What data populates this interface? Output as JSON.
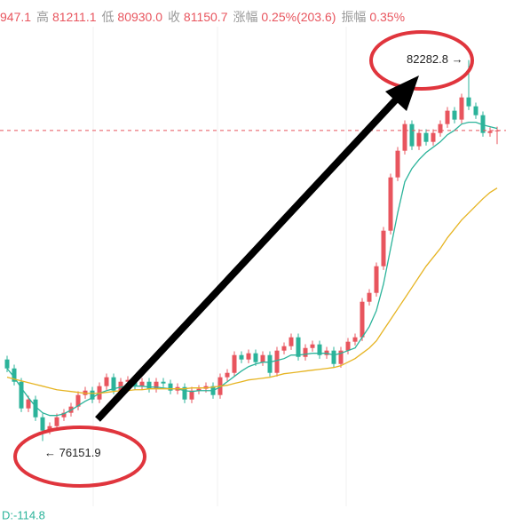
{
  "chart_data": {
    "type": "candlestick",
    "header": [
      {
        "label": null,
        "value": "947.1"
      },
      {
        "label": "高",
        "value": "81211.1"
      },
      {
        "label": "低",
        "value": "80930.0"
      },
      {
        "label": "收",
        "value": "81150.7"
      },
      {
        "label": "涨幅",
        "value": "0.25%(203.6)"
      },
      {
        "label": "振幅",
        "value": "0.35%"
      }
    ],
    "footer": "D:-114.8",
    "ylim": [
      74800,
      83250
    ],
    "up_color": "#e8555e",
    "down_color": "#2bb39a",
    "open": [
      77464,
      77320,
      77106,
      76677,
      76820,
      76534,
      76320,
      76391,
      76534,
      76606,
      76706,
      76892,
      76963,
      76820,
      77035,
      77178,
      76963,
      77106,
      77135,
      77035,
      77106,
      76992,
      77106,
      77078,
      76963,
      77020,
      76820,
      76963,
      76992,
      77035,
      76892,
      77178,
      77249,
      77535,
      77464,
      77564,
      77421,
      77535,
      77249,
      77607,
      77678,
      77821,
      77506,
      77649,
      77707,
      77535,
      77607,
      77392,
      77607,
      77750,
      77821,
      78393,
      78536,
      78965,
      79537,
      80395,
      80824,
      81253,
      80896,
      81110,
      80967,
      81110,
      81253,
      81468,
      81325,
      81682,
      81539,
      81396,
      81110,
      81139
    ],
    "high": [
      77524,
      77380,
      77166,
      76880,
      76880,
      76594,
      76451,
      76594,
      76666,
      76766,
      76952,
      77023,
      77023,
      77095,
      77238,
      77238,
      77166,
      77195,
      77195,
      77166,
      77166,
      77166,
      77166,
      77138,
      77080,
      77080,
      77023,
      77052,
      77095,
      77095,
      77238,
      77309,
      77595,
      77595,
      77624,
      77624,
      77595,
      77595,
      77667,
      77738,
      77881,
      77881,
      77709,
      77767,
      77767,
      77667,
      77667,
      77667,
      77810,
      77881,
      78453,
      78596,
      79025,
      79597,
      80455,
      80884,
      81313,
      81313,
      81170,
      81170,
      81170,
      81313,
      81528,
      81528,
      81742,
      82282.8,
      81599,
      81456,
      81199,
      81211.1
    ],
    "low": [
      77260,
      77046,
      76617,
      76617,
      76474,
      76151.9,
      76260,
      76331,
      76474,
      76546,
      76646,
      76832,
      76760,
      76760,
      76975,
      76903,
      76903,
      77046,
      76975,
      76975,
      76932,
      76932,
      77018,
      76903,
      76903,
      76760,
      76760,
      76903,
      76932,
      76832,
      76832,
      77118,
      77189,
      77404,
      77404,
      77361,
      77361,
      77189,
      77189,
      77547,
      77618,
      77446,
      77446,
      77589,
      77475,
      77475,
      77332,
      77332,
      77547,
      77690,
      77761,
      78333,
      78476,
      78905,
      79477,
      80335,
      80764,
      80836,
      80836,
      80907,
      80907,
      81050,
      81193,
      81265,
      81265,
      81479,
      81336,
      81050,
      81050,
      80930.0
    ],
    "close": [
      77320,
      77106,
      76677,
      76820,
      76534,
      76320,
      76391,
      76534,
      76606,
      76706,
      76892,
      76963,
      76820,
      77035,
      77178,
      76963,
      77106,
      77135,
      77035,
      77106,
      76992,
      77106,
      77078,
      76963,
      77020,
      76820,
      76963,
      76992,
      77035,
      76892,
      77178,
      77249,
      77535,
      77464,
      77564,
      77421,
      77535,
      77249,
      77607,
      77678,
      77821,
      77506,
      77649,
      77707,
      77535,
      77607,
      77392,
      77607,
      77750,
      77821,
      78393,
      78536,
      78965,
      79537,
      80395,
      80824,
      81253,
      80896,
      81110,
      80967,
      81110,
      81253,
      81468,
      81325,
      81682,
      81539,
      81396,
      81110,
      81139,
      81150.7
    ],
    "ma": [
      {
        "color": "#2bb39a",
        "values": [
          77320,
          77178,
          77006,
          76849,
          76706,
          76606,
          76563,
          76563,
          76591,
          76649,
          76720,
          76792,
          76849,
          76920,
          76963,
          76992,
          77020,
          77035,
          77035,
          77035,
          77020,
          77020,
          77006,
          76992,
          76992,
          76963,
          76949,
          76963,
          76963,
          76963,
          77020,
          77106,
          77192,
          77278,
          77349,
          77392,
          77421,
          77421,
          77449,
          77478,
          77535,
          77535,
          77549,
          77564,
          77564,
          77564,
          77535,
          77564,
          77607,
          77649,
          77821,
          77993,
          78250,
          78679,
          79251,
          79823,
          80324,
          80538,
          80681,
          80796,
          80881,
          80967,
          81081,
          81153,
          81253,
          81282,
          81282,
          81239,
          81210,
          81182
        ]
      },
      {
        "color": "#e6b422",
        "values": [
          77178,
          77149,
          77120,
          77092,
          77063,
          77035,
          77006,
          76977,
          76963,
          76949,
          76935,
          76920,
          76920,
          76920,
          76935,
          76949,
          76963,
          76963,
          76977,
          76977,
          76992,
          76992,
          76992,
          76992,
          76992,
          76992,
          77006,
          77006,
          77006,
          77020,
          77035,
          77049,
          77078,
          77106,
          77135,
          77149,
          77163,
          77178,
          77206,
          77235,
          77249,
          77263,
          77278,
          77292,
          77306,
          77320,
          77335,
          77364,
          77421,
          77478,
          77564,
          77649,
          77764,
          77936,
          78107,
          78279,
          78450,
          78622,
          78794,
          78965,
          79108,
          79251,
          79423,
          79566,
          79709,
          79823,
          79937,
          80052,
          80152,
          80224
        ]
      }
    ],
    "annotations": [
      {
        "value": 82282.8,
        "label": "82282.8 →"
      },
      {
        "value": 76151.9,
        "label": "← 76151.9"
      }
    ]
  }
}
